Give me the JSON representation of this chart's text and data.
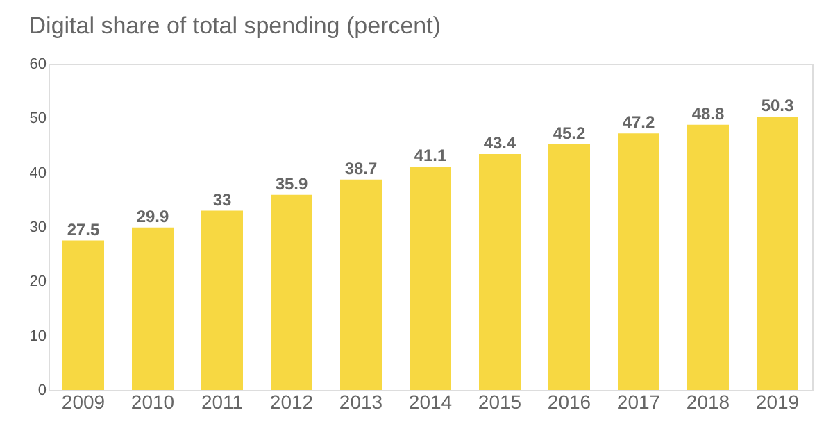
{
  "chart_data": {
    "type": "bar",
    "title": "Digital share of total spending (percent)",
    "categories": [
      "2009",
      "2010",
      "2011",
      "2012",
      "2013",
      "2014",
      "2015",
      "2016",
      "2017",
      "2018",
      "2019"
    ],
    "values": [
      27.5,
      29.9,
      33,
      35.9,
      38.7,
      41.1,
      43.4,
      45.2,
      47.2,
      48.8,
      50.3
    ],
    "color": "#f7d842",
    "ylim": [
      0,
      60
    ],
    "yticks": [
      0,
      10,
      20,
      30,
      40,
      50,
      60
    ],
    "grid": false,
    "data_labels": true
  }
}
